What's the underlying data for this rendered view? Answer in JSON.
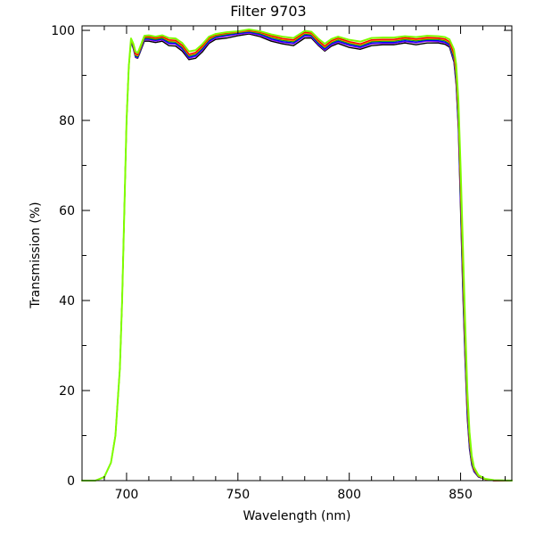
{
  "chart_data": {
    "type": "line",
    "title": "Filter 9703",
    "xlabel": "Wavelength (nm)",
    "ylabel": "Transmission (%)",
    "xlim": [
      680,
      873
    ],
    "ylim": [
      0,
      101
    ],
    "x_ticks": [
      700,
      750,
      800,
      850
    ],
    "x_tick_labels": [
      "700",
      "750",
      "800",
      "850"
    ],
    "y_ticks": [
      0,
      20,
      40,
      60,
      80,
      100
    ],
    "y_tick_labels": [
      "0",
      "20",
      "40",
      "60",
      "80",
      "100"
    ],
    "grid": false,
    "legend": false,
    "series": [
      {
        "color": "#000000",
        "x": [
          680,
          686,
          690,
          693,
          695,
          697,
          698,
          699,
          700,
          701,
          702,
          703,
          704,
          705,
          706,
          708,
          710,
          713,
          716,
          719,
          722,
          725,
          728,
          731,
          734,
          737,
          740,
          745,
          750,
          755,
          760,
          765,
          770,
          775,
          780,
          783,
          786,
          789,
          792,
          795,
          800,
          805,
          810,
          815,
          820,
          825,
          830,
          835,
          840,
          843,
          845,
          847,
          848,
          849,
          850,
          851,
          852,
          853,
          854,
          855,
          856,
          858,
          861,
          865,
          873
        ],
        "y": [
          0,
          0,
          0.8,
          4,
          10,
          25,
          40,
          60,
          80,
          92,
          97.5,
          96,
          94,
          93.8,
          95,
          97.6,
          97.6,
          97.3,
          97.6,
          96.6,
          96.5,
          95.4,
          93.5,
          93.8,
          95.2,
          97.1,
          98,
          98.3,
          98.8,
          99.2,
          98.6,
          97.6,
          97,
          96.6,
          98.3,
          98.3,
          96.7,
          95.4,
          96.5,
          97.1,
          96.2,
          95.8,
          96.6,
          96.8,
          96.8,
          97.2,
          96.8,
          97.2,
          97.2,
          96.9,
          96.3,
          93,
          88,
          78,
          60,
          42,
          27,
          14,
          7,
          3.5,
          2,
          0.8,
          0.3,
          0,
          0
        ]
      },
      {
        "color": "#a020f0",
        "x": [
          680,
          686,
          690,
          693,
          695,
          697,
          698,
          699,
          700,
          701,
          702,
          703,
          704,
          705,
          706,
          708,
          710,
          713,
          716,
          719,
          722,
          725,
          728,
          731,
          734,
          737,
          740,
          745,
          750,
          755,
          760,
          765,
          770,
          775,
          780,
          783,
          786,
          789,
          792,
          795,
          800,
          805,
          810,
          815,
          820,
          825,
          830,
          835,
          840,
          843,
          845,
          847,
          848,
          849,
          850,
          851,
          852,
          853,
          854,
          855,
          856,
          858,
          861,
          865,
          873
        ],
        "y": [
          0,
          0,
          0.8,
          4,
          10,
          25,
          40,
          60,
          80,
          92,
          97.6,
          96.2,
          94.1,
          93.9,
          95.2,
          97.9,
          97.9,
          97.6,
          97.9,
          97,
          96.9,
          95.8,
          93.8,
          94.2,
          95.6,
          97.4,
          98.3,
          98.7,
          99.1,
          99.4,
          98.9,
          97.9,
          97.3,
          97,
          98.7,
          98.6,
          96.9,
          95.6,
          96.8,
          97.4,
          96.6,
          96.1,
          97,
          97.1,
          97.1,
          97.5,
          97.2,
          97.6,
          97.5,
          97.2,
          96.6,
          93.4,
          88.7,
          79,
          61.5,
          43.5,
          28.5,
          15,
          7.5,
          3.8,
          2.1,
          0.9,
          0.3,
          0,
          0
        ]
      },
      {
        "color": "#0000ff",
        "x": [
          680,
          686,
          690,
          693,
          695,
          697,
          698,
          699,
          700,
          701,
          702,
          703,
          704,
          705,
          706,
          708,
          710,
          713,
          716,
          719,
          722,
          725,
          728,
          731,
          734,
          737,
          740,
          745,
          750,
          755,
          760,
          765,
          770,
          775,
          780,
          783,
          786,
          789,
          792,
          795,
          800,
          805,
          810,
          815,
          820,
          825,
          830,
          835,
          840,
          843,
          845,
          847,
          848,
          849,
          850,
          851,
          852,
          853,
          854,
          855,
          856,
          858,
          861,
          865,
          873
        ],
        "y": [
          0,
          0,
          0.8,
          4,
          10,
          25,
          40,
          60,
          80,
          92,
          97.7,
          96.3,
          94.2,
          94,
          95.3,
          98.1,
          98.1,
          97.8,
          98.1,
          97.2,
          97.1,
          96,
          94,
          94.4,
          95.8,
          97.6,
          98.5,
          98.9,
          99.3,
          99.6,
          99.1,
          98.1,
          97.5,
          97.2,
          98.9,
          98.8,
          97.1,
          95.8,
          97,
          97.6,
          96.8,
          96.3,
          97.2,
          97.3,
          97.3,
          97.7,
          97.4,
          97.8,
          97.7,
          97.4,
          96.8,
          93.7,
          89.1,
          79.7,
          62.5,
          44.7,
          29.5,
          15.8,
          8,
          4,
          2.2,
          0.9,
          0.3,
          0,
          0
        ]
      },
      {
        "color": "#00a000",
        "x": [
          680,
          686,
          690,
          693,
          695,
          697,
          698,
          699,
          700,
          701,
          702,
          703,
          704,
          705,
          706,
          708,
          710,
          713,
          716,
          719,
          722,
          725,
          728,
          731,
          734,
          737,
          740,
          745,
          750,
          755,
          760,
          765,
          770,
          775,
          780,
          783,
          786,
          789,
          792,
          795,
          800,
          805,
          810,
          815,
          820,
          825,
          830,
          835,
          840,
          843,
          845,
          847,
          848,
          849,
          850,
          851,
          852,
          853,
          854,
          855,
          856,
          858,
          861,
          865,
          873
        ],
        "y": [
          0,
          0,
          0.8,
          4,
          10,
          25,
          40,
          60,
          80,
          92,
          97.8,
          96.5,
          94.4,
          94.2,
          95.5,
          98.3,
          98.3,
          98,
          98.3,
          97.5,
          97.4,
          96.3,
          94.3,
          94.7,
          96.1,
          97.9,
          98.7,
          99.1,
          99.5,
          99.8,
          99.3,
          98.4,
          97.8,
          97.5,
          99.2,
          99,
          97.4,
          96.1,
          97.3,
          97.9,
          97.1,
          96.6,
          97.5,
          97.6,
          97.6,
          98,
          97.7,
          98,
          98,
          97.7,
          97.1,
          94.1,
          89.8,
          80.6,
          63.8,
          46,
          30.5,
          16.6,
          8.5,
          4.3,
          2.4,
          1,
          0.3,
          0,
          0
        ]
      },
      {
        "color": "#ff8c00",
        "x": [
          680,
          686,
          690,
          693,
          695,
          697,
          698,
          699,
          700,
          701,
          702,
          703,
          704,
          705,
          706,
          708,
          710,
          713,
          716,
          719,
          722,
          725,
          728,
          731,
          734,
          737,
          740,
          745,
          750,
          755,
          760,
          765,
          770,
          775,
          780,
          783,
          786,
          789,
          792,
          795,
          800,
          805,
          810,
          815,
          820,
          825,
          830,
          835,
          840,
          843,
          845,
          847,
          848,
          849,
          850,
          851,
          852,
          853,
          854,
          855,
          856,
          858,
          861,
          865,
          873
        ],
        "y": [
          0,
          0,
          0.8,
          4,
          10,
          25,
          40,
          60,
          80,
          92,
          97.9,
          96.7,
          94.6,
          94.4,
          95.7,
          98.5,
          98.5,
          98.2,
          98.5,
          97.7,
          97.6,
          96.5,
          94.5,
          94.9,
          96.3,
          98.1,
          98.9,
          99.3,
          99.6,
          99.9,
          99.5,
          98.6,
          98,
          97.7,
          99.4,
          99.2,
          97.6,
          96.3,
          97.5,
          98.1,
          97.3,
          96.8,
          97.7,
          97.8,
          97.8,
          98.2,
          97.9,
          98.2,
          98.2,
          97.9,
          97.3,
          94.5,
          90.4,
          81.5,
          65,
          47.4,
          31.6,
          17.4,
          9,
          4.6,
          2.5,
          1,
          0.3,
          0,
          0
        ]
      },
      {
        "color": "#ff0000",
        "x": [
          680,
          686,
          690,
          693,
          695,
          697,
          698,
          699,
          700,
          701,
          702,
          703,
          704,
          705,
          706,
          708,
          710,
          713,
          716,
          719,
          722,
          725,
          728,
          731,
          734,
          737,
          740,
          745,
          750,
          755,
          760,
          765,
          770,
          775,
          780,
          783,
          786,
          789,
          792,
          795,
          800,
          805,
          810,
          815,
          820,
          825,
          830,
          835,
          840,
          843,
          845,
          847,
          848,
          849,
          850,
          851,
          852,
          853,
          854,
          855,
          856,
          858,
          861,
          865,
          873
        ],
        "y": [
          0,
          0,
          0.8,
          4,
          10,
          25,
          40,
          60,
          80,
          92,
          98,
          96.8,
          94.8,
          94.6,
          95.9,
          98.6,
          98.6,
          98.3,
          98.6,
          97.9,
          97.8,
          96.7,
          94.7,
          95.1,
          96.5,
          98.3,
          99,
          99.4,
          99.7,
          100,
          99.6,
          98.8,
          98.2,
          97.9,
          99.6,
          99.4,
          97.8,
          96.5,
          97.7,
          98.3,
          97.5,
          97,
          97.9,
          98,
          98,
          98.4,
          98.1,
          98.4,
          98.3,
          98.1,
          97.5,
          94.8,
          91,
          82.4,
          66.2,
          48.8,
          32.7,
          18.2,
          9.5,
          4.9,
          2.6,
          1.1,
          0.3,
          0,
          0
        ]
      },
      {
        "color": "#7fff00",
        "x": [
          680,
          686,
          690,
          693,
          695,
          697,
          698,
          699,
          700,
          701,
          702,
          703,
          704,
          705,
          706,
          708,
          710,
          713,
          716,
          719,
          722,
          725,
          728,
          731,
          734,
          737,
          740,
          745,
          750,
          755,
          760,
          765,
          770,
          775,
          780,
          783,
          786,
          789,
          792,
          795,
          800,
          805,
          810,
          815,
          820,
          825,
          830,
          835,
          840,
          843,
          845,
          847,
          848,
          849,
          850,
          851,
          852,
          853,
          854,
          855,
          856,
          858,
          861,
          865,
          873
        ],
        "y": [
          0,
          0,
          0.8,
          4,
          10,
          25,
          40,
          60,
          80,
          92,
          98.2,
          97.1,
          95.3,
          95,
          96.2,
          98.8,
          98.9,
          98.6,
          98.9,
          98.3,
          98.2,
          97.2,
          95.3,
          95.6,
          96.9,
          98.6,
          99.2,
          99.6,
          99.8,
          100.2,
          99.8,
          99.1,
          98.6,
          98.3,
          99.9,
          99.7,
          98.2,
          97,
          98.1,
          98.6,
          97.9,
          97.5,
          98.3,
          98.4,
          98.4,
          98.7,
          98.5,
          98.8,
          98.7,
          98.5,
          98,
          95.8,
          92.5,
          84.5,
          69.5,
          52.5,
          35.8,
          20.3,
          10.8,
          5.5,
          3,
          1.2,
          0.4,
          0.1,
          0
        ]
      }
    ]
  }
}
